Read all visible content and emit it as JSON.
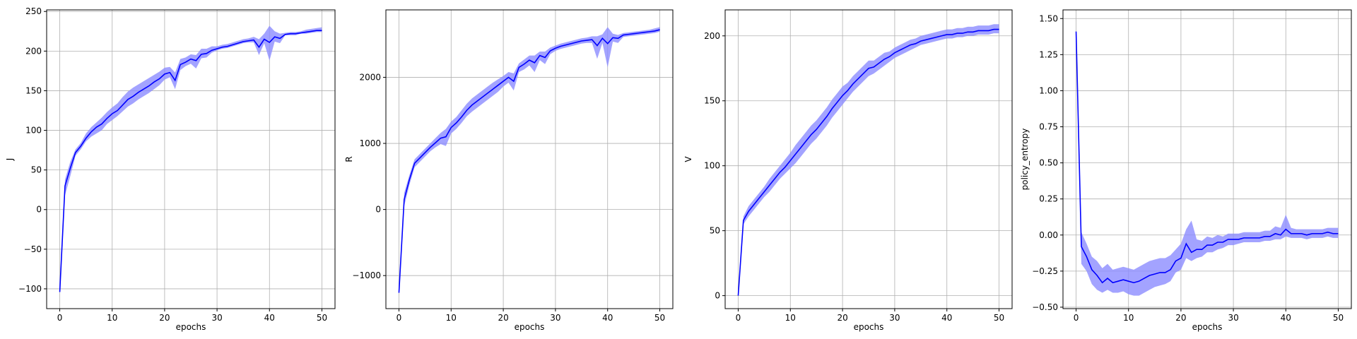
{
  "chart_data": [
    {
      "type": "line",
      "xlabel": "epochs",
      "ylabel": "J",
      "xlim": [
        -2.5,
        52.5
      ],
      "ylim": [
        -125,
        252
      ],
      "xticks": [
        0,
        10,
        20,
        30,
        40,
        50
      ],
      "yticks": [
        -100,
        -50,
        0,
        50,
        100,
        150,
        200,
        250
      ],
      "ytick_labels": [
        "−100",
        "−50",
        "0",
        "50",
        "100",
        "150",
        "200",
        "250"
      ],
      "grid": true,
      "line_color": "#0000ff",
      "band_color": "#8c8cff",
      "x": [
        0,
        1,
        2,
        3,
        4,
        5,
        6,
        7,
        8,
        9,
        10,
        11,
        12,
        13,
        14,
        15,
        16,
        17,
        18,
        19,
        20,
        21,
        22,
        23,
        24,
        25,
        26,
        27,
        28,
        29,
        30,
        31,
        32,
        33,
        34,
        35,
        36,
        37,
        38,
        39,
        40,
        41,
        42,
        43,
        44,
        45,
        46,
        47,
        48,
        49,
        50
      ],
      "values": [
        -104,
        30,
        52,
        72,
        80,
        90,
        98,
        104,
        108,
        115,
        121,
        125,
        132,
        139,
        143,
        148,
        152,
        156,
        161,
        165,
        171,
        173,
        163,
        183,
        186,
        190,
        188,
        196,
        197,
        201,
        203,
        205,
        206,
        208,
        210,
        212,
        213,
        214,
        205,
        215,
        211,
        218,
        216,
        221,
        222,
        222,
        223,
        224,
        225,
        226,
        226
      ],
      "lower": [
        -104,
        18,
        42,
        68,
        76,
        86,
        92,
        96,
        100,
        108,
        113,
        118,
        124,
        130,
        134,
        139,
        143,
        147,
        152,
        157,
        164,
        167,
        152,
        176,
        181,
        184,
        178,
        191,
        192,
        198,
        201,
        203,
        204,
        206,
        208,
        210,
        211,
        211,
        195,
        210,
        188,
        212,
        210,
        220,
        220,
        220,
        222,
        222,
        223,
        224,
        224
      ],
      "upper": [
        -104,
        38,
        60,
        76,
        84,
        96,
        104,
        110,
        116,
        123,
        129,
        134,
        142,
        149,
        154,
        158,
        162,
        166,
        170,
        174,
        179,
        180,
        173,
        190,
        192,
        196,
        195,
        203,
        203,
        206,
        206,
        208,
        209,
        211,
        213,
        215,
        216,
        218,
        215,
        222,
        232,
        225,
        222,
        223,
        224,
        224,
        225,
        227,
        228,
        229,
        230
      ]
    },
    {
      "type": "line",
      "xlabel": "epochs",
      "ylabel": "R",
      "xlim": [
        -2.5,
        52.5
      ],
      "ylim": [
        -1500,
        3020
      ],
      "xticks": [
        0,
        10,
        20,
        30,
        40,
        50
      ],
      "yticks": [
        -1000,
        0,
        1000,
        2000
      ],
      "ytick_labels": [
        "−1000",
        "0",
        "1000",
        "2000"
      ],
      "grid": true,
      "line_color": "#0000ff",
      "band_color": "#8c8cff",
      "x": [
        0,
        1,
        2,
        3,
        4,
        5,
        6,
        7,
        8,
        9,
        10,
        11,
        12,
        13,
        14,
        15,
        16,
        17,
        18,
        19,
        20,
        21,
        22,
        23,
        24,
        25,
        26,
        27,
        28,
        29,
        30,
        31,
        32,
        33,
        34,
        35,
        36,
        37,
        38,
        39,
        40,
        41,
        42,
        43,
        44,
        45,
        46,
        47,
        48,
        49,
        50
      ],
      "values": [
        -1260,
        150,
        450,
        700,
        780,
        860,
        940,
        1010,
        1080,
        1100,
        1240,
        1310,
        1400,
        1500,
        1580,
        1640,
        1700,
        1760,
        1820,
        1880,
        1940,
        2000,
        1940,
        2150,
        2200,
        2260,
        2220,
        2330,
        2300,
        2400,
        2440,
        2470,
        2490,
        2510,
        2530,
        2550,
        2560,
        2570,
        2480,
        2590,
        2510,
        2600,
        2590,
        2640,
        2650,
        2660,
        2670,
        2680,
        2690,
        2700,
        2720
      ],
      "lower": [
        -1260,
        50,
        370,
        640,
        720,
        800,
        880,
        940,
        990,
        960,
        1150,
        1220,
        1310,
        1410,
        1480,
        1540,
        1600,
        1660,
        1720,
        1780,
        1860,
        1920,
        1800,
        2080,
        2120,
        2180,
        2080,
        2260,
        2200,
        2350,
        2400,
        2430,
        2450,
        2470,
        2490,
        2510,
        2520,
        2520,
        2280,
        2520,
        2150,
        2540,
        2520,
        2610,
        2620,
        2630,
        2640,
        2650,
        2660,
        2670,
        2690
      ],
      "upper": [
        -1260,
        250,
        520,
        760,
        840,
        920,
        1000,
        1080,
        1160,
        1220,
        1330,
        1400,
        1500,
        1600,
        1680,
        1740,
        1800,
        1860,
        1920,
        1970,
        2020,
        2080,
        2060,
        2210,
        2270,
        2330,
        2330,
        2390,
        2390,
        2450,
        2480,
        2510,
        2530,
        2550,
        2570,
        2590,
        2600,
        2620,
        2620,
        2650,
        2760,
        2660,
        2640,
        2670,
        2680,
        2690,
        2700,
        2710,
        2720,
        2740,
        2760
      ]
    },
    {
      "type": "line",
      "xlabel": "epochs",
      "ylabel": "V",
      "xlim": [
        -2.5,
        52.5
      ],
      "ylim": [
        -10,
        220
      ],
      "xticks": [
        0,
        10,
        20,
        30,
        40,
        50
      ],
      "yticks": [
        0,
        50,
        100,
        150,
        200
      ],
      "ytick_labels": [
        "0",
        "50",
        "100",
        "150",
        "200"
      ],
      "grid": true,
      "line_color": "#0000ff",
      "band_color": "#8c8cff",
      "x": [
        0,
        1,
        2,
        3,
        4,
        5,
        6,
        7,
        8,
        9,
        10,
        11,
        12,
        13,
        14,
        15,
        16,
        17,
        18,
        19,
        20,
        21,
        22,
        23,
        24,
        25,
        26,
        27,
        28,
        29,
        30,
        31,
        32,
        33,
        34,
        35,
        36,
        37,
        38,
        39,
        40,
        41,
        42,
        43,
        44,
        45,
        46,
        47,
        48,
        49,
        50
      ],
      "values": [
        0,
        58,
        65,
        70,
        75,
        80,
        85,
        90,
        95,
        99,
        104,
        109,
        114,
        119,
        124,
        128,
        133,
        138,
        144,
        149,
        154,
        158,
        163,
        167,
        171,
        175,
        176,
        179,
        182,
        184,
        187,
        189,
        191,
        193,
        194,
        196,
        197,
        198,
        199,
        200,
        201,
        201,
        202,
        202,
        203,
        203,
        204,
        204,
        204,
        205,
        205
      ],
      "lower": [
        0,
        55,
        61,
        66,
        71,
        76,
        80,
        85,
        90,
        94,
        98,
        102,
        107,
        112,
        117,
        121,
        126,
        131,
        137,
        142,
        147,
        152,
        157,
        161,
        165,
        169,
        171,
        174,
        177,
        180,
        183,
        185,
        187,
        189,
        191,
        193,
        194,
        195,
        196,
        197,
        198,
        198,
        199,
        199,
        200,
        200,
        201,
        201,
        201,
        202,
        202
      ],
      "upper": [
        0,
        61,
        69,
        74,
        79,
        84,
        90,
        95,
        100,
        105,
        110,
        116,
        121,
        126,
        131,
        135,
        140,
        145,
        151,
        156,
        161,
        164,
        169,
        173,
        177,
        181,
        181,
        184,
        187,
        188,
        191,
        193,
        195,
        197,
        198,
        200,
        201,
        202,
        203,
        204,
        205,
        205,
        206,
        206,
        207,
        207,
        208,
        208,
        208,
        209,
        209
      ]
    },
    {
      "type": "line",
      "xlabel": "epochs",
      "ylabel": "policy_entropy",
      "xlim": [
        -2.5,
        52.5
      ],
      "ylim": [
        -0.51,
        1.56
      ],
      "xticks": [
        0,
        10,
        20,
        30,
        40,
        50
      ],
      "yticks": [
        -0.5,
        -0.25,
        0.0,
        0.25,
        0.5,
        0.75,
        1.0,
        1.25,
        1.5
      ],
      "ytick_labels": [
        "−0.50",
        "−0.25",
        "0.00",
        "0.25",
        "0.50",
        "0.75",
        "1.00",
        "1.25",
        "1.50"
      ],
      "grid": true,
      "line_color": "#0000ff",
      "band_color": "#8c8cff",
      "x": [
        0,
        1,
        2,
        3,
        4,
        5,
        6,
        7,
        8,
        9,
        10,
        11,
        12,
        13,
        14,
        15,
        16,
        17,
        18,
        19,
        20,
        21,
        22,
        23,
        24,
        25,
        26,
        27,
        28,
        29,
        30,
        31,
        32,
        33,
        34,
        35,
        36,
        37,
        38,
        39,
        40,
        41,
        42,
        43,
        44,
        45,
        46,
        47,
        48,
        49,
        50
      ],
      "values": [
        1.41,
        -0.08,
        -0.15,
        -0.24,
        -0.28,
        -0.33,
        -0.3,
        -0.33,
        -0.32,
        -0.31,
        -0.32,
        -0.33,
        -0.32,
        -0.3,
        -0.28,
        -0.27,
        -0.26,
        -0.26,
        -0.24,
        -0.18,
        -0.16,
        -0.06,
        -0.12,
        -0.1,
        -0.1,
        -0.07,
        -0.07,
        -0.05,
        -0.05,
        -0.03,
        -0.03,
        -0.03,
        -0.02,
        -0.02,
        -0.02,
        -0.02,
        -0.01,
        -0.01,
        0.01,
        0.0,
        0.04,
        0.01,
        0.01,
        0.01,
        0.0,
        0.01,
        0.01,
        0.01,
        0.02,
        0.01,
        0.01
      ],
      "lower": [
        1.41,
        -0.2,
        -0.25,
        -0.34,
        -0.38,
        -0.4,
        -0.38,
        -0.4,
        -0.4,
        -0.39,
        -0.41,
        -0.42,
        -0.42,
        -0.4,
        -0.38,
        -0.36,
        -0.35,
        -0.34,
        -0.32,
        -0.26,
        -0.24,
        -0.16,
        -0.18,
        -0.16,
        -0.15,
        -0.12,
        -0.12,
        -0.1,
        -0.09,
        -0.07,
        -0.07,
        -0.06,
        -0.05,
        -0.05,
        -0.05,
        -0.05,
        -0.04,
        -0.04,
        -0.03,
        -0.03,
        -0.01,
        -0.02,
        -0.02,
        -0.02,
        -0.03,
        -0.02,
        -0.02,
        -0.02,
        -0.01,
        -0.02,
        -0.02
      ],
      "upper": [
        1.41,
        0.02,
        -0.06,
        -0.15,
        -0.18,
        -0.23,
        -0.2,
        -0.24,
        -0.23,
        -0.22,
        -0.23,
        -0.24,
        -0.22,
        -0.2,
        -0.18,
        -0.17,
        -0.16,
        -0.16,
        -0.14,
        -0.1,
        -0.06,
        0.04,
        0.1,
        -0.03,
        -0.04,
        -0.01,
        -0.02,
        0.0,
        -0.01,
        0.01,
        0.01,
        0.01,
        0.02,
        0.02,
        0.02,
        0.02,
        0.03,
        0.03,
        0.06,
        0.05,
        0.14,
        0.05,
        0.04,
        0.04,
        0.04,
        0.04,
        0.04,
        0.04,
        0.05,
        0.05,
        0.05
      ]
    }
  ]
}
